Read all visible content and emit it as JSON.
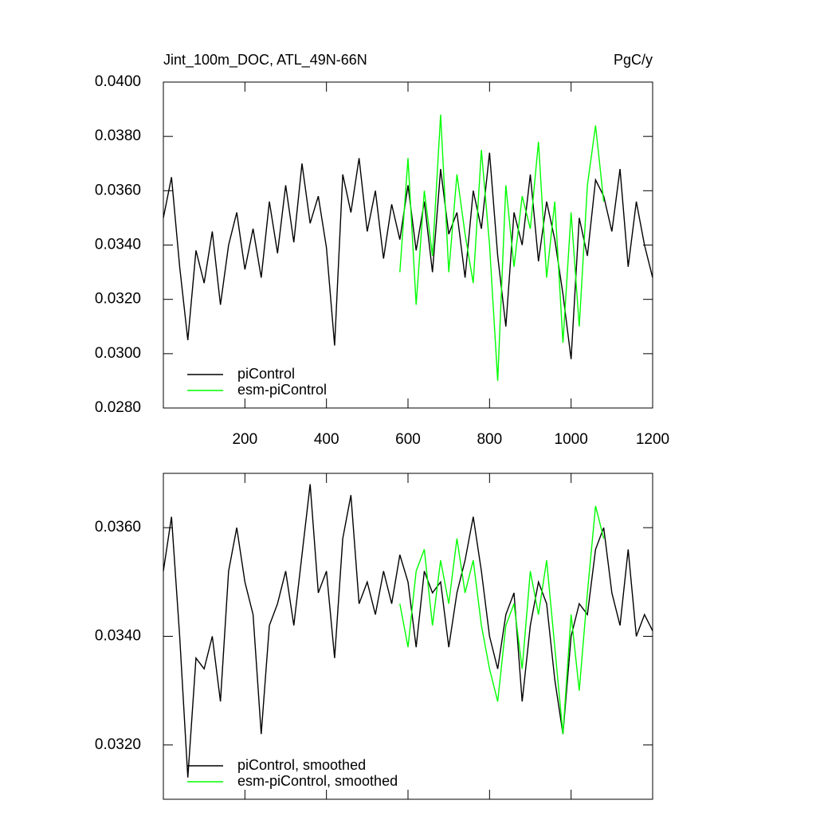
{
  "chart_data": [
    {
      "type": "line",
      "title": "Jint_100m_DOC, ATL_49N-66N",
      "units": "PgC/y",
      "x": [
        0,
        20,
        40,
        60,
        80,
        100,
        120,
        140,
        160,
        180,
        200,
        220,
        240,
        260,
        280,
        300,
        320,
        340,
        360,
        380,
        400,
        420,
        440,
        460,
        480,
        500,
        520,
        540,
        560,
        580,
        600,
        620,
        640,
        660,
        680,
        700,
        720,
        740,
        760,
        780,
        800,
        820,
        840,
        860,
        880,
        900,
        920,
        940,
        960,
        980,
        1000,
        1020,
        1040,
        1060,
        1080,
        1100,
        1120,
        1140,
        1160,
        1180,
        1200
      ],
      "series": [
        {
          "name": "piControl",
          "color": "#000000",
          "values": [
            0.035,
            0.0365,
            0.0332,
            0.0305,
            0.0338,
            0.0326,
            0.0345,
            0.0318,
            0.034,
            0.0352,
            0.0331,
            0.0346,
            0.0328,
            0.0356,
            0.0337,
            0.0362,
            0.0341,
            0.037,
            0.0348,
            0.0358,
            0.0339,
            0.0303,
            0.0366,
            0.0352,
            0.0372,
            0.0345,
            0.036,
            0.0335,
            0.0355,
            0.0342,
            0.0362,
            0.0338,
            0.0356,
            0.033,
            0.0368,
            0.0344,
            0.0352,
            0.0328,
            0.036,
            0.0346,
            0.0374,
            0.0336,
            0.031,
            0.0352,
            0.034,
            0.0366,
            0.0334,
            0.0356,
            0.0342,
            0.0322,
            0.0298,
            0.035,
            0.0336,
            0.0364,
            0.0358,
            0.0345,
            0.0368,
            0.0332,
            0.0356,
            0.034,
            0.0328
          ]
        },
        {
          "name": "esm-piControl",
          "color": "#00ff00",
          "values": [
            null,
            null,
            null,
            null,
            null,
            null,
            null,
            null,
            null,
            null,
            null,
            null,
            null,
            null,
            null,
            null,
            null,
            null,
            null,
            null,
            null,
            null,
            null,
            null,
            null,
            null,
            null,
            null,
            null,
            0.033,
            0.0372,
            0.0318,
            0.036,
            0.0336,
            0.0388,
            0.033,
            0.0366,
            0.0344,
            0.0326,
            0.0375,
            0.034,
            0.029,
            0.0362,
            0.0332,
            0.0358,
            0.0346,
            0.0378,
            0.0328,
            0.0356,
            0.0304,
            0.0352,
            0.031,
            0.0362,
            0.0384,
            0.0356,
            null,
            null,
            null,
            null,
            null,
            null
          ]
        }
      ],
      "xlim": [
        0,
        1200
      ],
      "xticks": [
        200,
        400,
        600,
        800,
        1000,
        1200
      ],
      "ylim": [
        0.028,
        0.04
      ],
      "yticks": [
        {
          "value": 0.028,
          "label": "0.0280"
        },
        {
          "value": 0.03,
          "label": "0.0300"
        },
        {
          "value": 0.032,
          "label": "0.0320"
        },
        {
          "value": 0.034,
          "label": "0.0340"
        },
        {
          "value": 0.036,
          "label": "0.0360"
        },
        {
          "value": 0.038,
          "label": "0.0380"
        },
        {
          "value": 0.04,
          "label": "0.0400"
        }
      ],
      "legend": "lower left"
    },
    {
      "type": "line",
      "x": [
        0,
        20,
        40,
        60,
        80,
        100,
        120,
        140,
        160,
        180,
        200,
        220,
        240,
        260,
        280,
        300,
        320,
        340,
        360,
        380,
        400,
        420,
        440,
        460,
        480,
        500,
        520,
        540,
        560,
        580,
        600,
        620,
        640,
        660,
        680,
        700,
        720,
        740,
        760,
        780,
        800,
        820,
        840,
        860,
        880,
        900,
        920,
        940,
        960,
        980,
        1000,
        1020,
        1040,
        1060,
        1080,
        1100,
        1120,
        1140,
        1160,
        1180,
        1200
      ],
      "series": [
        {
          "name": "piControl, smoothed",
          "color": "#000000",
          "values": [
            0.0352,
            0.0362,
            0.034,
            0.0314,
            0.0336,
            0.0334,
            0.034,
            0.0328,
            0.0352,
            0.036,
            0.035,
            0.0344,
            0.0322,
            0.0342,
            0.0346,
            0.0352,
            0.0342,
            0.0355,
            0.0368,
            0.0348,
            0.0352,
            0.0336,
            0.0358,
            0.0366,
            0.0346,
            0.035,
            0.0344,
            0.0352,
            0.0346,
            0.0355,
            0.035,
            0.0338,
            0.0352,
            0.0348,
            0.035,
            0.0338,
            0.0348,
            0.0354,
            0.0362,
            0.0352,
            0.034,
            0.0334,
            0.0344,
            0.0348,
            0.0328,
            0.0342,
            0.035,
            0.0346,
            0.0332,
            0.0322,
            0.034,
            0.0346,
            0.0344,
            0.0356,
            0.036,
            0.0348,
            0.0342,
            0.0356,
            0.034,
            0.0344,
            0.0341
          ]
        },
        {
          "name": "esm-piControl, smoothed",
          "color": "#00ff00",
          "values": [
            null,
            null,
            null,
            null,
            null,
            null,
            null,
            null,
            null,
            null,
            null,
            null,
            null,
            null,
            null,
            null,
            null,
            null,
            null,
            null,
            null,
            null,
            null,
            null,
            null,
            null,
            null,
            null,
            null,
            0.0346,
            0.0338,
            0.0352,
            0.0356,
            0.0342,
            0.0354,
            0.0346,
            0.0358,
            0.0348,
            0.0354,
            0.0342,
            0.0334,
            0.0328,
            0.0342,
            0.0346,
            0.0334,
            0.0352,
            0.0344,
            0.0354,
            0.0338,
            0.0322,
            0.0344,
            0.033,
            0.0348,
            0.0364,
            0.0358,
            null,
            null,
            null,
            null,
            null,
            null
          ]
        }
      ],
      "xlim": [
        0,
        1200
      ],
      "ylim": [
        0.031,
        0.037
      ],
      "yticks": [
        {
          "value": 0.032,
          "label": "0.0320"
        },
        {
          "value": 0.034,
          "label": "0.0340"
        },
        {
          "value": 0.036,
          "label": "0.0360"
        }
      ],
      "legend": "lower left"
    }
  ]
}
